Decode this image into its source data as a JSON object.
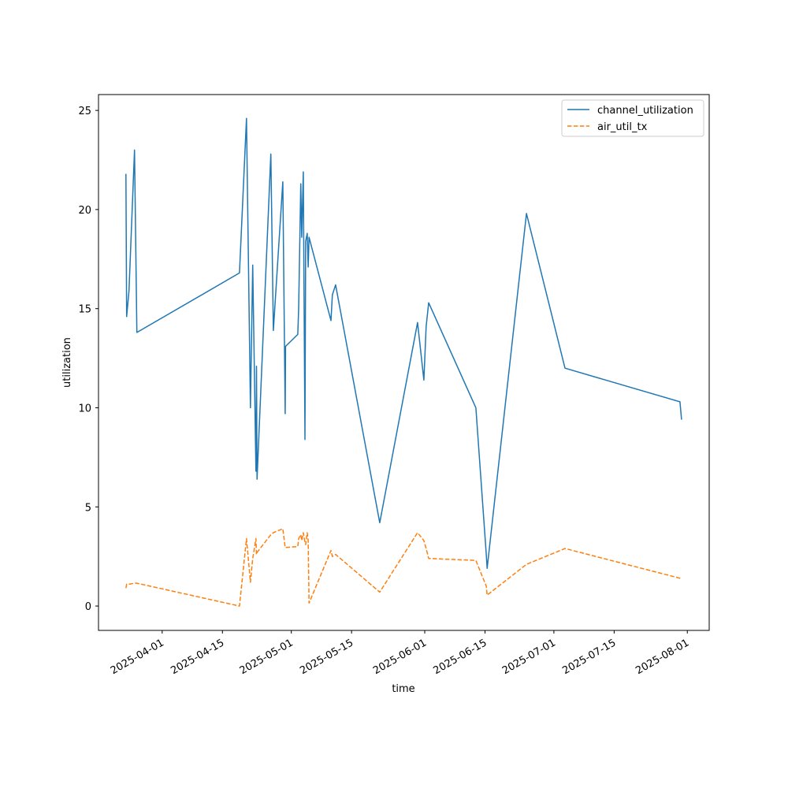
{
  "chart_data": {
    "type": "line",
    "title": "",
    "xlabel": "time",
    "ylabel": "utilization",
    "xlim": [
      "2025-03-17T05:00",
      "2025-08-06T02:00"
    ],
    "ylim": [
      -1.23,
      25.8
    ],
    "x_ticks": [
      "2025-04-01",
      "2025-04-15",
      "2025-05-01",
      "2025-05-15",
      "2025-06-01",
      "2025-06-15",
      "2025-07-01",
      "2025-07-15",
      "2025-08-01"
    ],
    "y_ticks": [
      0,
      5,
      10,
      15,
      20,
      25
    ],
    "legend_position": "top-right",
    "grid": false,
    "x": [
      "2025-03-23T14:00",
      "2025-03-23T18:00",
      "2025-03-24T07:00",
      "2025-03-25T14:00",
      "2025-03-26T03:00",
      "2025-04-18T23:00",
      "2025-04-20T14:00",
      "2025-04-21T12:00",
      "2025-04-22T01:00",
      "2025-04-22T19:00",
      "2025-04-22T22:00",
      "2025-04-23T01:00",
      "2025-04-26T06:00",
      "2025-04-26T20:00",
      "2025-04-29T00:30",
      "2025-04-29T14:00",
      "2025-04-29T16:00",
      "2025-05-02T12:00",
      "2025-05-02T17:00",
      "2025-05-03T05:00",
      "2025-05-03T10:00",
      "2025-05-03T19:00",
      "2025-05-04T04:00",
      "2025-05-04T08:00",
      "2025-05-04T17:00",
      "2025-05-04T22:00",
      "2025-05-05T03:00",
      "2025-05-10T05:00",
      "2025-05-10T13:00",
      "2025-05-11T07:00",
      "2025-05-21T13:00",
      "2025-05-30T08:00",
      "2025-05-31T19:00",
      "2025-06-01T08:00",
      "2025-06-01T22:00",
      "2025-06-12T21:00",
      "2025-06-15T07:00",
      "2025-06-15T12:00",
      "2025-06-24T15:00",
      "2025-07-03T14:00",
      "2025-07-30T07:00",
      "2025-07-30T16:00"
    ],
    "series": [
      {
        "name": "channel_utilization",
        "color": "#1f77b4",
        "style": "solid",
        "values": [
          21.8,
          14.6,
          15.9,
          23.0,
          13.8,
          16.8,
          24.6,
          10.0,
          17.2,
          6.8,
          12.1,
          6.4,
          22.8,
          13.9,
          21.4,
          9.7,
          13.1,
          13.7,
          15.0,
          21.3,
          18.6,
          21.9,
          8.4,
          18.4,
          18.8,
          17.1,
          18.6,
          14.4,
          15.7,
          16.2,
          4.2,
          14.3,
          11.4,
          14.1,
          15.3,
          10.0,
          2.6,
          1.9,
          19.8,
          12.0,
          10.3,
          9.4
        ]
      },
      {
        "name": "air_util_tx",
        "color": "#ff7f0e",
        "style": "dashed",
        "values": [
          0.9,
          1.1,
          1.1,
          1.15,
          1.15,
          0.0,
          3.4,
          1.2,
          2.4,
          3.4,
          2.6,
          2.7,
          3.6,
          3.7,
          3.9,
          2.95,
          2.95,
          3.0,
          3.4,
          3.6,
          3.3,
          3.7,
          3.2,
          3.1,
          3.7,
          3.3,
          0.15,
          2.8,
          2.5,
          2.6,
          0.7,
          3.7,
          3.3,
          2.9,
          2.4,
          2.3,
          1.0,
          0.55,
          2.1,
          2.9,
          1.4,
          1.35
        ]
      }
    ]
  }
}
